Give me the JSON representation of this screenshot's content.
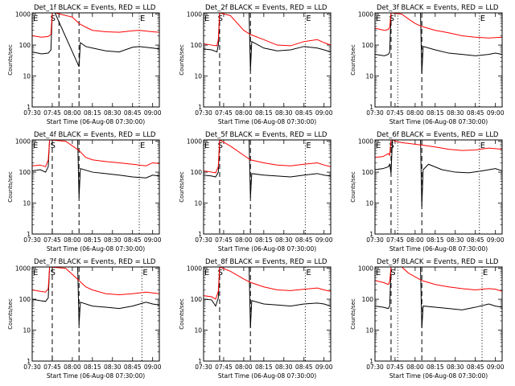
{
  "colors": {
    "events": "#000000",
    "lld": "#ff0000",
    "axes": "#000000",
    "background": "#ffffff"
  },
  "common": {
    "ylabel": "Counts/sec",
    "xlabel": "Start Time (06-Aug-08 07:30:00)",
    "x_ticks": [
      "07:30",
      "07:45",
      "08:00",
      "08:15",
      "08:30",
      "08:45",
      "09:00"
    ],
    "y_ticks": [
      "1",
      "10",
      "100",
      "1000"
    ]
  },
  "chart_data": [
    {
      "type": "line",
      "title": "Det_1f BLACK = Events, RED = LLD",
      "xlim": [
        "07:30",
        "09:05"
      ],
      "ylim": [
        1,
        1100
      ],
      "yscale": "log",
      "markers": [
        {
          "label": "E",
          "x": "07:30"
        },
        {
          "label": "S",
          "x": "07:43"
        },
        {
          "label": "E",
          "x": "08:50"
        }
      ],
      "event_lines": [
        {
          "x": "07:50",
          "style": "dashed"
        },
        {
          "x": "08:05",
          "style": "dashed"
        },
        {
          "x": "08:50",
          "style": "dotted"
        }
      ],
      "series": [
        {
          "name": "Events",
          "color": "#000000",
          "x": [
            "07:30",
            "07:37",
            "07:42",
            "07:44",
            "07:45",
            "07:47",
            "08:05",
            "08:06",
            "08:10",
            "08:15",
            "08:25",
            "08:35",
            "08:45",
            "08:50",
            "09:00",
            "09:05"
          ],
          "y": [
            60,
            52,
            55,
            70,
            1100,
            1100,
            20,
            120,
            90,
            80,
            65,
            60,
            85,
            90,
            80,
            75
          ]
        },
        {
          "name": "LLD",
          "color": "#ff0000",
          "x": [
            "07:30",
            "07:37",
            "07:42",
            "07:44",
            "07:45",
            "07:47",
            "08:00",
            "08:05",
            "08:10",
            "08:15",
            "08:25",
            "08:35",
            "08:45",
            "08:50",
            "09:00",
            "09:05"
          ],
          "y": [
            200,
            180,
            190,
            220,
            1100,
            1100,
            800,
            500,
            380,
            300,
            270,
            260,
            290,
            300,
            270,
            260
          ]
        }
      ]
    },
    {
      "type": "line",
      "title": "Det_2f BLACK = Events, RED = LLD",
      "xlim": [
        "07:30",
        "09:05"
      ],
      "ylim": [
        1,
        1100
      ],
      "yscale": "log",
      "markers": [
        {
          "label": "E",
          "x": "07:30"
        },
        {
          "label": "S",
          "x": "07:40"
        },
        {
          "label": "E",
          "x": "08:46"
        }
      ],
      "event_lines": [
        {
          "x": "07:42",
          "style": "dashed"
        },
        {
          "x": "08:05",
          "style": "dashed"
        },
        {
          "x": "08:46",
          "style": "dotted"
        }
      ],
      "series": [
        {
          "name": "Events",
          "color": "#000000",
          "x": [
            "07:30",
            "07:36",
            "07:40",
            "07:41",
            "07:42",
            "08:04",
            "08:05",
            "08:06",
            "08:15",
            "08:25",
            "08:35",
            "08:45",
            "08:55",
            "09:00",
            "09:05"
          ],
          "y": [
            75,
            70,
            60,
            100,
            1100,
            1100,
            15,
            130,
            80,
            65,
            70,
            90,
            80,
            70,
            60
          ]
        },
        {
          "name": "LLD",
          "color": "#ff0000",
          "x": [
            "07:30",
            "07:36",
            "07:40",
            "07:41",
            "07:42",
            "07:50",
            "08:00",
            "08:05",
            "08:15",
            "08:25",
            "08:35",
            "08:45",
            "08:55",
            "09:00",
            "09:05"
          ],
          "y": [
            110,
            100,
            95,
            150,
            1100,
            900,
            300,
            220,
            150,
            100,
            95,
            130,
            150,
            120,
            100
          ]
        }
      ]
    },
    {
      "type": "line",
      "title": "Det_3f BLACK = Events, RED = LLD",
      "xlim": [
        "07:30",
        "09:05"
      ],
      "ylim": [
        1,
        1100
      ],
      "yscale": "log",
      "markers": [
        {
          "label": "E",
          "x": "07:30"
        },
        {
          "label": "S",
          "x": "07:40"
        },
        {
          "label": "E",
          "x": "08:48"
        }
      ],
      "event_lines": [
        {
          "x": "07:42",
          "style": "dashed"
        },
        {
          "x": "07:47",
          "style": "dotted"
        },
        {
          "x": "08:05",
          "style": "dashed"
        },
        {
          "x": "08:48",
          "style": "dotted"
        }
      ],
      "series": [
        {
          "name": "Events",
          "color": "#000000",
          "x": [
            "07:30",
            "07:37",
            "07:40",
            "07:41",
            "07:42",
            "08:04",
            "08:05",
            "08:06",
            "08:15",
            "08:25",
            "08:35",
            "08:45",
            "08:55",
            "09:00",
            "09:05"
          ],
          "y": [
            50,
            45,
            50,
            60,
            1100,
            1100,
            12,
            90,
            70,
            55,
            50,
            45,
            50,
            55,
            50
          ]
        },
        {
          "name": "LLD",
          "color": "#ff0000",
          "x": [
            "07:30",
            "07:37",
            "07:40",
            "07:41",
            "07:42",
            "07:50",
            "07:55",
            "08:00",
            "08:05",
            "08:15",
            "08:25",
            "08:35",
            "08:45",
            "08:55",
            "09:05"
          ],
          "y": [
            350,
            300,
            320,
            380,
            1100,
            1000,
            700,
            500,
            400,
            300,
            250,
            200,
            180,
            170,
            180
          ]
        }
      ]
    },
    {
      "type": "line",
      "title": "Det_4f BLACK = Events, RED = LLD",
      "xlim": [
        "07:30",
        "09:05"
      ],
      "ylim": [
        1,
        1100
      ],
      "yscale": "log",
      "markers": [
        {
          "label": "E",
          "x": "07:30"
        },
        {
          "label": "S",
          "x": "07:43"
        },
        {
          "label": "E",
          "x": "08:50"
        }
      ],
      "event_lines": [
        {
          "x": "07:45",
          "style": "dashed"
        },
        {
          "x": "08:05",
          "style": "dashed"
        },
        {
          "x": "08:50",
          "style": "dotted"
        }
      ],
      "series": [
        {
          "name": "Events",
          "color": "#000000",
          "x": [
            "07:30",
            "07:36",
            "07:40",
            "07:42",
            "07:43",
            "08:04",
            "08:05",
            "08:06",
            "08:15",
            "08:25",
            "08:35",
            "08:45",
            "08:55",
            "09:00",
            "09:05"
          ],
          "y": [
            110,
            120,
            100,
            150,
            1100,
            1100,
            15,
            130,
            100,
            90,
            80,
            70,
            65,
            80,
            75
          ]
        },
        {
          "name": "LLD",
          "color": "#ff0000",
          "x": [
            "07:30",
            "07:36",
            "07:40",
            "07:42",
            "07:43",
            "07:55",
            "08:05",
            "08:10",
            "08:15",
            "08:25",
            "08:35",
            "08:45",
            "08:55",
            "09:00",
            "09:05"
          ],
          "y": [
            160,
            170,
            150,
            250,
            1100,
            1000,
            500,
            300,
            250,
            220,
            200,
            180,
            160,
            200,
            190
          ]
        }
      ]
    },
    {
      "type": "line",
      "title": "Det_5f BLACK = Events, RED = LLD",
      "xlim": [
        "07:30",
        "09:05"
      ],
      "ylim": [
        1,
        1100
      ],
      "yscale": "log",
      "markers": [
        {
          "label": "E",
          "x": "07:30"
        },
        {
          "label": "S",
          "x": "07:40"
        },
        {
          "label": "E",
          "x": "08:46"
        }
      ],
      "event_lines": [
        {
          "x": "07:42",
          "style": "dashed"
        },
        {
          "x": "08:05",
          "style": "dashed"
        },
        {
          "x": "08:46",
          "style": "dotted"
        }
      ],
      "series": [
        {
          "name": "Events",
          "color": "#000000",
          "x": [
            "07:30",
            "07:36",
            "07:39",
            "07:41",
            "07:42",
            "08:04",
            "08:05",
            "08:06",
            "08:15",
            "08:25",
            "08:35",
            "08:45",
            "08:55",
            "09:00",
            "09:05"
          ],
          "y": [
            80,
            75,
            70,
            100,
            1100,
            1100,
            15,
            90,
            80,
            75,
            70,
            80,
            90,
            80,
            75
          ]
        },
        {
          "name": "LLD",
          "color": "#ff0000",
          "x": [
            "07:30",
            "07:36",
            "07:39",
            "07:41",
            "07:42",
            "07:50",
            "08:00",
            "08:05",
            "08:15",
            "08:25",
            "08:35",
            "08:45",
            "08:55",
            "09:00",
            "09:05"
          ],
          "y": [
            110,
            100,
            95,
            150,
            1100,
            700,
            350,
            250,
            200,
            170,
            160,
            180,
            200,
            170,
            150
          ]
        }
      ]
    },
    {
      "type": "line",
      "title": "Det_6f BLACK = Events, RED = LLD",
      "xlim": [
        "07:30",
        "09:05"
      ],
      "ylim": [
        1,
        1100
      ],
      "yscale": "log",
      "markers": [
        {
          "label": "E",
          "x": "07:30"
        },
        {
          "label": "S",
          "x": "07:40"
        },
        {
          "label": "E",
          "x": "08:48"
        }
      ],
      "event_lines": [
        {
          "x": "07:42",
          "style": "dashed"
        },
        {
          "x": "07:47",
          "style": "dotted"
        },
        {
          "x": "08:05",
          "style": "dashed"
        },
        {
          "x": "08:48",
          "style": "dotted"
        }
      ],
      "series": [
        {
          "name": "Events",
          "color": "#000000",
          "x": [
            "07:30",
            "07:36",
            "07:40",
            "07:41",
            "07:42",
            "07:43",
            "08:04",
            "08:05",
            "08:06",
            "08:10",
            "08:20",
            "08:30",
            "08:40",
            "08:50",
            "09:00",
            "09:05"
          ],
          "y": [
            120,
            130,
            150,
            180,
            90,
            1100,
            1100,
            8,
            120,
            180,
            120,
            100,
            95,
            110,
            130,
            110
          ]
        },
        {
          "name": "LLD",
          "color": "#ff0000",
          "x": [
            "07:30",
            "07:36",
            "07:40",
            "07:41",
            "07:42",
            "07:43",
            "07:45",
            "07:50",
            "08:00",
            "08:05",
            "08:15",
            "08:25",
            "08:35",
            "08:45",
            "08:55",
            "09:05"
          ],
          "y": [
            300,
            320,
            400,
            350,
            1100,
            1100,
            1000,
            900,
            800,
            750,
            650,
            550,
            500,
            520,
            600,
            550
          ]
        }
      ]
    },
    {
      "type": "line",
      "title": "Det_7f BLACK = Events, RED = LLD",
      "xlim": [
        "07:30",
        "09:05"
      ],
      "ylim": [
        1,
        1100
      ],
      "yscale": "log",
      "markers": [
        {
          "label": "E",
          "x": "07:30"
        },
        {
          "label": "S",
          "x": "07:43"
        },
        {
          "label": "E",
          "x": "08:52"
        }
      ],
      "event_lines": [
        {
          "x": "07:45",
          "style": "dashed"
        },
        {
          "x": "08:05",
          "style": "dashed"
        },
        {
          "x": "08:52",
          "style": "dotted"
        }
      ],
      "series": [
        {
          "name": "Events",
          "color": "#000000",
          "x": [
            "07:30",
            "07:36",
            "07:40",
            "07:42",
            "07:43",
            "08:04",
            "08:05",
            "08:06",
            "08:15",
            "08:25",
            "08:35",
            "08:45",
            "08:55",
            "09:00",
            "09:05"
          ],
          "y": [
            100,
            90,
            85,
            110,
            1100,
            1100,
            15,
            80,
            60,
            55,
            50,
            60,
            80,
            70,
            65
          ]
        },
        {
          "name": "LLD",
          "color": "#ff0000",
          "x": [
            "07:30",
            "07:36",
            "07:40",
            "07:42",
            "07:43",
            "07:55",
            "08:05",
            "08:10",
            "08:15",
            "08:25",
            "08:35",
            "08:45",
            "08:55",
            "09:00",
            "09:05"
          ],
          "y": [
            200,
            180,
            170,
            220,
            1100,
            1000,
            400,
            250,
            200,
            150,
            140,
            150,
            170,
            160,
            150
          ]
        }
      ]
    },
    {
      "type": "line",
      "title": "Det_8f BLACK = Events, RED = LLD",
      "xlim": [
        "07:30",
        "09:05"
      ],
      "ylim": [
        1,
        1100
      ],
      "yscale": "log",
      "markers": [
        {
          "label": "E",
          "x": "07:30"
        },
        {
          "label": "S",
          "x": "07:40"
        },
        {
          "label": "E",
          "x": "08:46"
        }
      ],
      "event_lines": [
        {
          "x": "07:42",
          "style": "dashed"
        },
        {
          "x": "08:05",
          "style": "dashed"
        },
        {
          "x": "08:46",
          "style": "dotted"
        }
      ],
      "series": [
        {
          "name": "Events",
          "color": "#000000",
          "x": [
            "07:30",
            "07:36",
            "07:39",
            "07:41",
            "07:42",
            "08:04",
            "08:05",
            "08:06",
            "08:15",
            "08:25",
            "08:35",
            "08:45",
            "08:55",
            "09:00",
            "09:05"
          ],
          "y": [
            100,
            95,
            60,
            110,
            1100,
            1100,
            12,
            90,
            70,
            65,
            60,
            70,
            75,
            70,
            60
          ]
        },
        {
          "name": "LLD",
          "color": "#ff0000",
          "x": [
            "07:30",
            "07:36",
            "07:39",
            "07:41",
            "07:42",
            "07:50",
            "08:00",
            "08:05",
            "08:15",
            "08:25",
            "08:35",
            "08:45",
            "08:55",
            "09:00",
            "09:05"
          ],
          "y": [
            130,
            120,
            100,
            180,
            1100,
            800,
            450,
            350,
            250,
            200,
            190,
            210,
            230,
            200,
            180
          ]
        }
      ]
    },
    {
      "type": "line",
      "title": "Det_9f BLACK = Events, RED = LLD",
      "xlim": [
        "07:30",
        "09:05"
      ],
      "ylim": [
        1,
        1100
      ],
      "yscale": "log",
      "markers": [
        {
          "label": "E",
          "x": "07:30"
        },
        {
          "label": "S",
          "x": "07:41"
        },
        {
          "label": "E",
          "x": "08:50"
        }
      ],
      "event_lines": [
        {
          "x": "07:42",
          "style": "dashed"
        },
        {
          "x": "07:47",
          "style": "dotted"
        },
        {
          "x": "08:05",
          "style": "dashed"
        },
        {
          "x": "08:50",
          "style": "dotted"
        }
      ],
      "series": [
        {
          "name": "Events",
          "color": "#000000",
          "x": [
            "07:30",
            "07:36",
            "07:40",
            "07:41",
            "07:42",
            "08:04",
            "08:05",
            "08:06",
            "08:15",
            "08:25",
            "08:35",
            "08:45",
            "08:55",
            "09:00",
            "09:05"
          ],
          "y": [
            60,
            55,
            50,
            60,
            1100,
            1100,
            12,
            60,
            55,
            50,
            45,
            55,
            70,
            60,
            55
          ]
        },
        {
          "name": "LLD",
          "color": "#ff0000",
          "x": [
            "07:30",
            "07:36",
            "07:40",
            "07:41",
            "07:42",
            "07:50",
            "07:55",
            "08:05",
            "08:15",
            "08:25",
            "08:35",
            "08:45",
            "08:55",
            "09:00",
            "09:05"
          ],
          "y": [
            400,
            350,
            300,
            380,
            1100,
            1100,
            700,
            400,
            300,
            250,
            220,
            200,
            220,
            210,
            180
          ]
        }
      ]
    }
  ]
}
